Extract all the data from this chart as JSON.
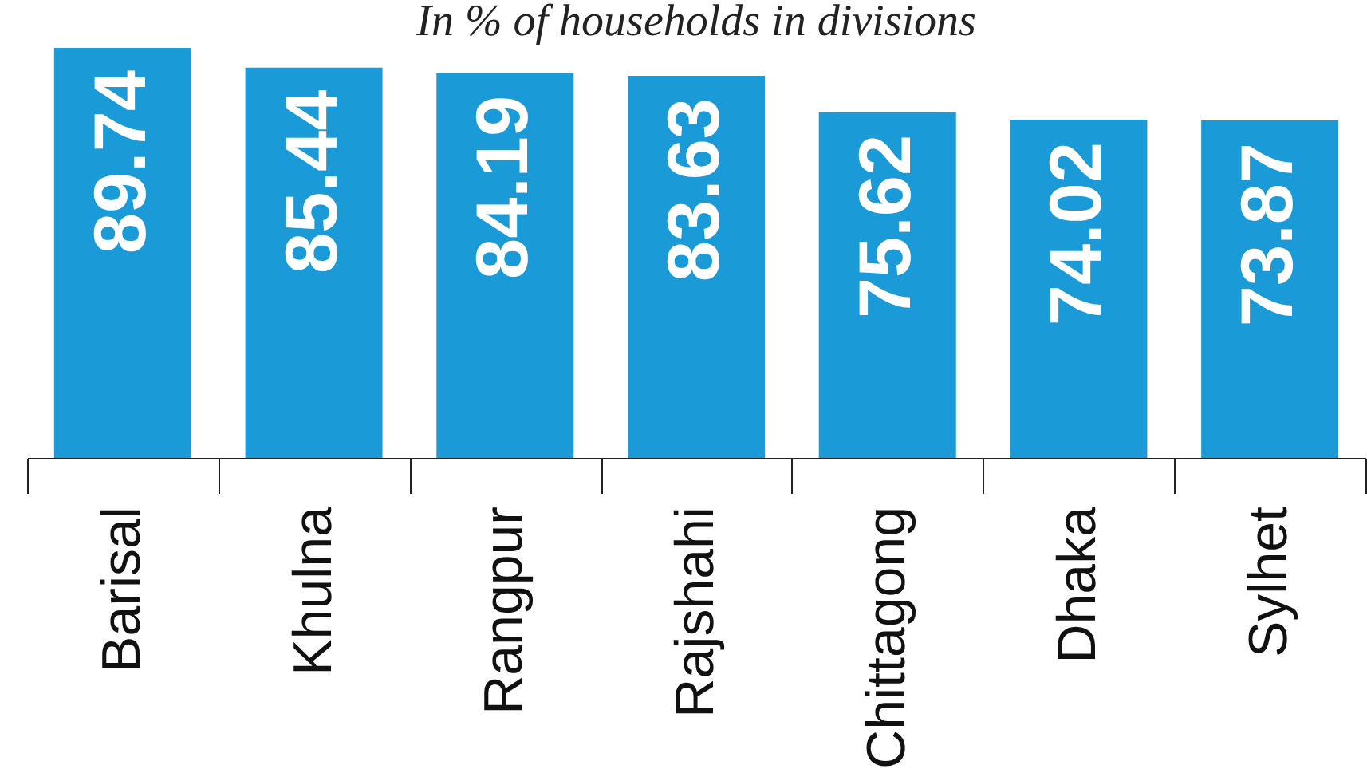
{
  "chart_data": {
    "type": "bar",
    "subtitle": "In % of households in divisions",
    "categories": [
      "Barisal",
      "Khulna",
      "Rangpur",
      "Rajshahi",
      "Chittagong",
      "Dhaka",
      "Sylhet"
    ],
    "values": [
      89.74,
      85.44,
      84.19,
      83.63,
      75.62,
      74.02,
      73.87
    ],
    "color": "#1a9ad6",
    "data_labels": true
  }
}
